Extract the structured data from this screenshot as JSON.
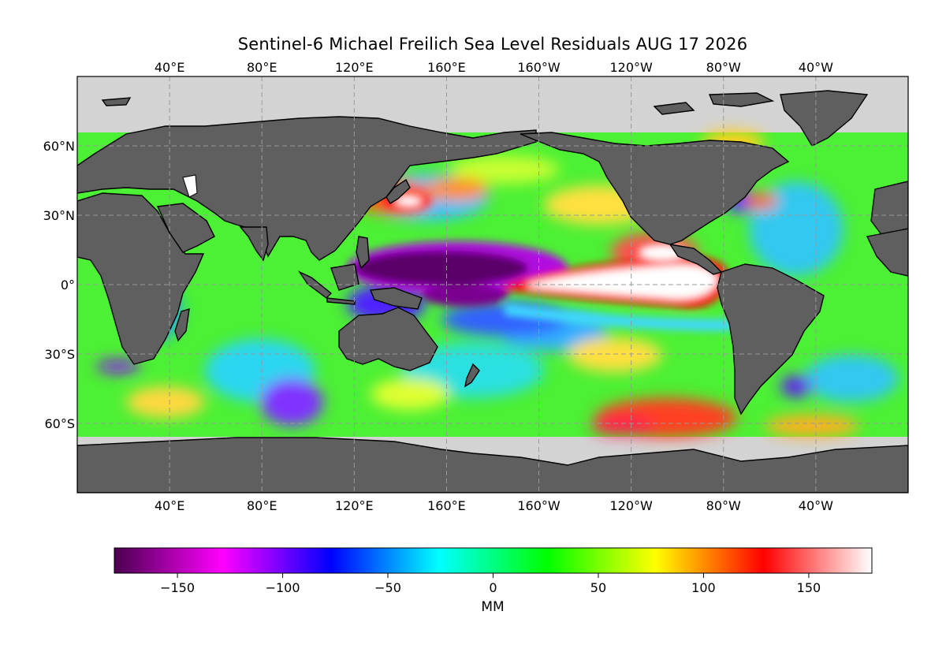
{
  "title": "Sentinel-6 Michael Freilich Sea Level Residuals AUG 17 2026",
  "map": {
    "longitude_ticks": [
      {
        "lon": 40,
        "label": "40°E"
      },
      {
        "lon": 80,
        "label": "80°E"
      },
      {
        "lon": 120,
        "label": "120°E"
      },
      {
        "lon": 160,
        "label": "160°E"
      },
      {
        "lon": 200,
        "label": "160°W"
      },
      {
        "lon": 240,
        "label": "120°W"
      },
      {
        "lon": 280,
        "label": "80°W"
      },
      {
        "lon": 320,
        "label": "40°W"
      }
    ],
    "latitude_ticks": [
      {
        "lat": 60,
        "label": "60°N"
      },
      {
        "lat": 30,
        "label": "30°N"
      },
      {
        "lat": 0,
        "label": "0°"
      },
      {
        "lat": -30,
        "label": "30°S"
      },
      {
        "lat": -60,
        "label": "60°S"
      }
    ],
    "lon_range": [
      0,
      360
    ],
    "lat_range": [
      -90,
      90
    ],
    "data_lat_range": [
      -66,
      66
    ],
    "colors": {
      "land": "#5f5f5f",
      "polar_fill": "#d3d3d3",
      "ocean_background": "#4cf034",
      "gridlines": "#9a9a9a"
    },
    "anomalies": [
      {
        "name": "eastern-pacific-positive",
        "lon": 235,
        "lat": -2,
        "value": 175
      },
      {
        "name": "western-pacific-negative",
        "lon": 148,
        "lat": 6,
        "value": -170
      },
      {
        "name": "southwest-pacific-negative",
        "lon": 160,
        "lat": -5,
        "value": -160
      },
      {
        "name": "kuroshio-positive",
        "lon": 148,
        "lat": 36,
        "value": 160
      },
      {
        "name": "southeast-pacific-positive",
        "lon": 255,
        "lat": -55,
        "value": 110
      },
      {
        "name": "indian-ocean-negative",
        "lon": 95,
        "lat": -55,
        "value": -130
      },
      {
        "name": "north-atlantic-positive",
        "lon": 300,
        "lat": 45,
        "value": 60
      }
    ]
  },
  "colorbar": {
    "label": "MM",
    "min": -180,
    "max": 180,
    "ticks": [
      {
        "value": -150,
        "label": "−150"
      },
      {
        "value": -100,
        "label": "−100"
      },
      {
        "value": -50,
        "label": "−50"
      },
      {
        "value": 0,
        "label": "0"
      },
      {
        "value": 50,
        "label": "50"
      },
      {
        "value": 100,
        "label": "100"
      },
      {
        "value": 150,
        "label": "150"
      }
    ],
    "stops": [
      "#4b004f",
      "#ff00ff",
      "#0000ff",
      "#00ffff",
      "#00ff00",
      "#ffff00",
      "#ff0000",
      "#ffffff"
    ]
  }
}
